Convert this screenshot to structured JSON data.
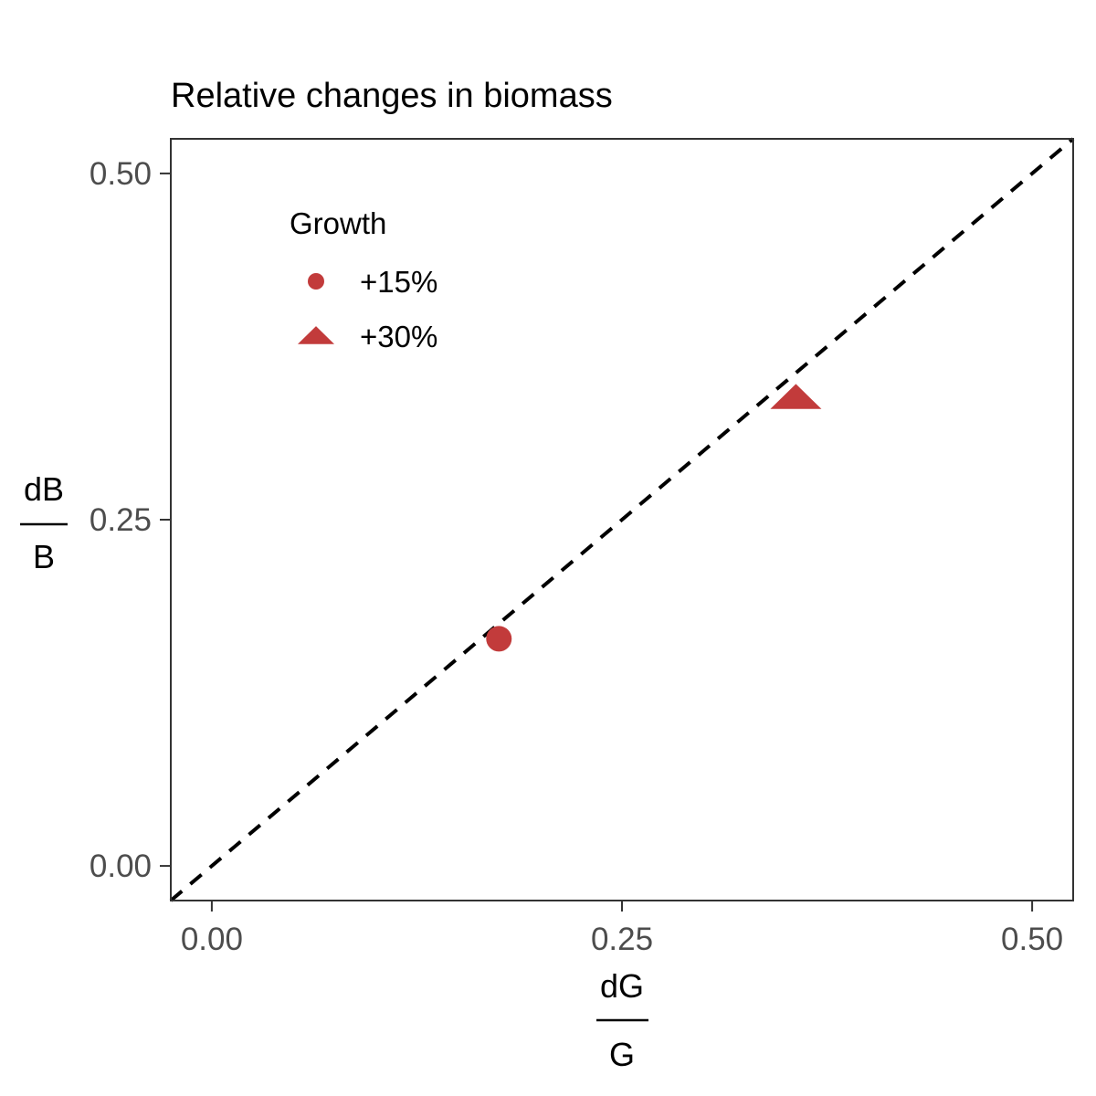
{
  "chart_data": {
    "type": "scatter",
    "title": "Relative changes in biomass",
    "xlabel": {
      "numerator": "dG",
      "denominator": "G"
    },
    "ylabel": {
      "numerator": "dB",
      "denominator": "B"
    },
    "xlim": [
      -0.025,
      0.525
    ],
    "ylim": [
      -0.025,
      0.525
    ],
    "x_ticks": [
      0.0,
      0.25,
      0.5
    ],
    "x_tick_labels": [
      "0.00",
      "0.25",
      "0.50"
    ],
    "y_ticks": [
      0.0,
      0.25,
      0.5
    ],
    "y_tick_labels": [
      "0.00",
      "0.25",
      "0.50"
    ],
    "grid": false,
    "reference_line": {
      "style": "dashed",
      "color": "#000000",
      "slope": 1,
      "intercept": 0
    },
    "legend": {
      "title": "Growth",
      "placement": "top-left",
      "entries": [
        {
          "label": "+15%",
          "shape": "circle",
          "color": "#c23b3b"
        },
        {
          "label": "+30%",
          "shape": "triangle",
          "color": "#c23b3b"
        }
      ]
    },
    "series": [
      {
        "name": "+15%",
        "shape": "circle",
        "color": "#c23b3b",
        "points": [
          {
            "x": 0.175,
            "y": 0.164
          }
        ]
      },
      {
        "name": "+30%",
        "shape": "triangle",
        "color": "#c23b3b",
        "points": [
          {
            "x": 0.356,
            "y": 0.338
          }
        ]
      }
    ]
  }
}
